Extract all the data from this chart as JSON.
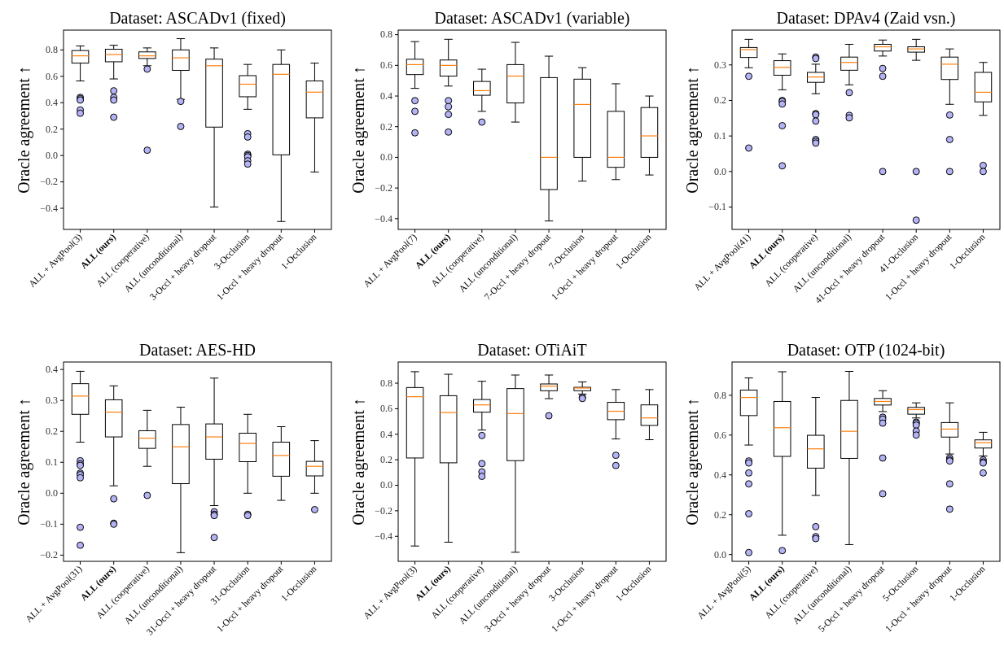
{
  "chart_data": [
    {
      "type": "box",
      "title": "Dataset: ASCADv1 (fixed)",
      "ylabel": "Oracle agreement ↑",
      "categories": [
        "ALL + AvgPool(3)",
        "ALL (ours)",
        "ALL (cooperative)",
        "ALL (unconditional)",
        "3-Occl + heavy dropout",
        "3-Occlusion",
        "1-Occl + heavy dropout",
        "1-Occlusion"
      ],
      "ylim": [
        -0.56,
        0.95
      ],
      "yticks": [
        {
          "value": -0.4,
          "label": "−0.4"
        },
        {
          "value": -0.2,
          "label": "−0.2"
        },
        {
          "value": 0,
          "label": "0.0"
        },
        {
          "value": 0.2,
          "label": "0.2"
        },
        {
          "value": 0.4,
          "label": "0.4"
        },
        {
          "value": 0.6,
          "label": "0.6"
        },
        {
          "value": 0.8,
          "label": "0.8"
        }
      ],
      "boxes": [
        {
          "low": 0.565,
          "q1": 0.7,
          "median": 0.755,
          "q3": 0.795,
          "high": 0.83,
          "outliers": [
            0.44,
            0.43,
            0.42,
            0.345,
            0.32
          ]
        },
        {
          "low": 0.58,
          "q1": 0.71,
          "median": 0.765,
          "q3": 0.805,
          "high": 0.835,
          "outliers": [
            0.49,
            0.44,
            0.42,
            0.29
          ]
        },
        {
          "low": 0.68,
          "q1": 0.735,
          "median": 0.755,
          "q3": 0.785,
          "high": 0.815,
          "outliers": [
            0.655,
            0.04
          ]
        },
        {
          "low": 0.425,
          "q1": 0.645,
          "median": 0.74,
          "q3": 0.8,
          "high": 0.885,
          "outliers": [
            0.41,
            0.22
          ]
        },
        {
          "low": -0.39,
          "q1": 0.215,
          "median": 0.68,
          "q3": 0.73,
          "high": 0.815
        },
        {
          "low": 0.35,
          "q1": 0.445,
          "median": 0.54,
          "q3": 0.605,
          "high": 0.69,
          "outliers": [
            0.165,
            0.14,
            0.01,
            0.0,
            -0.01,
            -0.04,
            -0.065
          ]
        },
        {
          "low": -0.5,
          "q1": 0.005,
          "median": 0.615,
          "q3": 0.69,
          "high": 0.8
        },
        {
          "low": -0.125,
          "q1": 0.285,
          "median": 0.48,
          "q3": 0.565,
          "high": 0.7
        }
      ]
    },
    {
      "type": "box",
      "title": "Dataset: ASCADv1 (variable)",
      "ylabel": "Oracle agreement ↑",
      "categories": [
        "ALL + AvgPool(7)",
        "ALL (ours)",
        "ALL (cooperative)",
        "ALL (unconditional)",
        "7-Occl + heavy dropout",
        "7-Occlusion",
        "1-Occl + heavy dropout",
        "1-Occlusion"
      ],
      "ylim": [
        -0.47,
        0.83
      ],
      "yticks": [
        {
          "value": -0.4,
          "label": "−0.4"
        },
        {
          "value": -0.2,
          "label": "−0.2"
        },
        {
          "value": 0,
          "label": "0.0"
        },
        {
          "value": 0.2,
          "label": "0.2"
        },
        {
          "value": 0.4,
          "label": "0.4"
        },
        {
          "value": 0.6,
          "label": "0.6"
        },
        {
          "value": 0.8,
          "label": "0.8"
        }
      ],
      "boxes": [
        {
          "low": 0.45,
          "q1": 0.54,
          "median": 0.605,
          "q3": 0.64,
          "high": 0.755,
          "outliers": [
            0.37,
            0.3,
            0.16
          ]
        },
        {
          "low": 0.465,
          "q1": 0.53,
          "median": 0.6,
          "q3": 0.635,
          "high": 0.77,
          "outliers": [
            0.37,
            0.33,
            0.28,
            0.165
          ]
        },
        {
          "low": 0.3,
          "q1": 0.405,
          "median": 0.435,
          "q3": 0.495,
          "high": 0.575,
          "outliers": [
            0.23
          ]
        },
        {
          "low": 0.23,
          "q1": 0.355,
          "median": 0.53,
          "q3": 0.605,
          "high": 0.75
        },
        {
          "low": -0.415,
          "q1": -0.21,
          "median": 0.0,
          "q3": 0.52,
          "high": 0.66
        },
        {
          "low": -0.155,
          "q1": 0.0,
          "median": 0.345,
          "q3": 0.51,
          "high": 0.585
        },
        {
          "low": -0.145,
          "q1": -0.065,
          "median": 0.0,
          "q3": 0.3,
          "high": 0.48
        },
        {
          "low": -0.115,
          "q1": 0.0,
          "median": 0.14,
          "q3": 0.325,
          "high": 0.4
        }
      ]
    },
    {
      "type": "box",
      "title": "Dataset: DPAv4 (Zaid vsn.)",
      "ylabel": "Oracle agreement ↑",
      "categories": [
        "ALL + AvgPool(41)",
        "ALL (ours)",
        "ALL (cooperative)",
        "ALL (unconditional)",
        "41-Occl + heavy dropout",
        "41-Occlusion",
        "1-Occl + heavy dropout",
        "1-Occlusion"
      ],
      "ylim": [
        -0.163,
        0.398
      ],
      "yticks": [
        {
          "value": -0.1,
          "label": "−0.1"
        },
        {
          "value": 0,
          "label": "0.0"
        },
        {
          "value": 0.1,
          "label": "0.1"
        },
        {
          "value": 0.2,
          "label": "0.2"
        },
        {
          "value": 0.3,
          "label": "0.3"
        }
      ],
      "boxes": [
        {
          "low": 0.292,
          "q1": 0.321,
          "median": 0.343,
          "q3": 0.349,
          "high": 0.372,
          "outliers": [
            0.268,
            0.066
          ]
        },
        {
          "low": 0.23,
          "q1": 0.271,
          "median": 0.293,
          "q3": 0.312,
          "high": 0.331,
          "outliers": [
            0.2,
            0.197,
            0.19,
            0.129,
            0.016
          ]
        },
        {
          "low": 0.219,
          "q1": 0.251,
          "median": 0.266,
          "q3": 0.279,
          "high": 0.302,
          "outliers": [
            0.322,
            0.318,
            0.163,
            0.16,
            0.142,
            0.09,
            0.085,
            0.08
          ]
        },
        {
          "low": 0.244,
          "q1": 0.285,
          "median": 0.307,
          "q3": 0.322,
          "high": 0.358,
          "outliers": [
            0.222,
            0.158,
            0.151
          ]
        },
        {
          "low": 0.325,
          "q1": 0.339,
          "median": 0.351,
          "q3": 0.358,
          "high": 0.37,
          "outliers": [
            0.29,
            0.268,
            0.0
          ]
        },
        {
          "low": 0.313,
          "q1": 0.336,
          "median": 0.345,
          "q3": 0.351,
          "high": 0.372,
          "outliers": [
            0.0,
            -0.137
          ]
        },
        {
          "low": 0.189,
          "q1": 0.259,
          "median": 0.302,
          "q3": 0.322,
          "high": 0.345,
          "outliers": [
            0.159,
            0.09,
            0.0
          ]
        },
        {
          "low": 0.158,
          "q1": 0.196,
          "median": 0.223,
          "q3": 0.279,
          "high": 0.307,
          "outliers": [
            0.017,
            0.0
          ]
        }
      ]
    },
    {
      "type": "box",
      "title": "Dataset: AES-HD",
      "ylabel": "Oracle agreement ↑",
      "categories": [
        "ALL + AvgPool(31)",
        "ALL (ours)",
        "ALL (cooperative)",
        "ALL (unconditional)",
        "31-Occl + heavy dropout",
        "31-Occlusion",
        "1-Occl + heavy dropout",
        "1-Occlusion"
      ],
      "ylim": [
        -0.22,
        0.424
      ],
      "yticks": [
        {
          "value": -0.2,
          "label": "−0.2"
        },
        {
          "value": -0.1,
          "label": "−0.1"
        },
        {
          "value": 0,
          "label": "0.0"
        },
        {
          "value": 0.1,
          "label": "0.1"
        },
        {
          "value": 0.2,
          "label": "0.2"
        },
        {
          "value": 0.3,
          "label": "0.3"
        },
        {
          "value": 0.4,
          "label": "0.4"
        }
      ],
      "boxes": [
        {
          "low": 0.165,
          "q1": 0.255,
          "median": 0.314,
          "q3": 0.354,
          "high": 0.394,
          "outliers": [
            0.105,
            0.095,
            0.09,
            0.065,
            0.06,
            0.05,
            -0.11,
            -0.168
          ]
        },
        {
          "low": 0.024,
          "q1": 0.182,
          "median": 0.262,
          "q3": 0.302,
          "high": 0.347,
          "outliers": [
            -0.018,
            -0.097,
            -0.1
          ]
        },
        {
          "low": 0.087,
          "q1": 0.145,
          "median": 0.178,
          "q3": 0.202,
          "high": 0.268,
          "outliers": [
            -0.007
          ]
        },
        {
          "low": -0.192,
          "q1": 0.031,
          "median": 0.15,
          "q3": 0.222,
          "high": 0.278
        },
        {
          "low": -0.04,
          "q1": 0.11,
          "median": 0.182,
          "q3": 0.224,
          "high": 0.372,
          "outliers": [
            -0.06,
            -0.068,
            -0.072,
            -0.143
          ]
        },
        {
          "low": 0.0,
          "q1": 0.102,
          "median": 0.161,
          "q3": 0.194,
          "high": 0.255,
          "outliers": [
            -0.068,
            -0.072
          ]
        },
        {
          "low": -0.023,
          "q1": 0.055,
          "median": 0.122,
          "q3": 0.165,
          "high": 0.215
        },
        {
          "low": 0.0,
          "q1": 0.056,
          "median": 0.087,
          "q3": 0.103,
          "high": 0.17,
          "outliers": [
            -0.053
          ]
        }
      ]
    },
    {
      "type": "box",
      "title": "Dataset: OTiAiT",
      "ylabel": "Oracle agreement ↑",
      "categories": [
        "ALL + AvgPool(3)",
        "ALL (ours)",
        "ALL (cooperative)",
        "ALL (unconditional)",
        "3-Occl + heavy dropout",
        "3-Occlusion",
        "1-Occl + heavy dropout",
        "1-Occlusion"
      ],
      "ylim": [
        -0.596,
        0.966
      ],
      "yticks": [
        {
          "value": -0.4,
          "label": "−0.4"
        },
        {
          "value": -0.2,
          "label": "−0.2"
        },
        {
          "value": 0,
          "label": "0.0"
        },
        {
          "value": 0.2,
          "label": "0.2"
        },
        {
          "value": 0.4,
          "label": "0.4"
        },
        {
          "value": 0.6,
          "label": "0.6"
        },
        {
          "value": 0.8,
          "label": "0.8"
        }
      ],
      "boxes": [
        {
          "low": -0.476,
          "q1": 0.214,
          "median": 0.694,
          "q3": 0.766,
          "high": 0.89
        },
        {
          "low": -0.446,
          "q1": 0.176,
          "median": 0.57,
          "q3": 0.702,
          "high": 0.87
        },
        {
          "low": 0.433,
          "q1": 0.573,
          "median": 0.63,
          "q3": 0.672,
          "high": 0.815,
          "outliers": [
            0.39,
            0.17,
            0.105,
            0.07
          ]
        },
        {
          "low": -0.525,
          "q1": 0.193,
          "median": 0.562,
          "q3": 0.758,
          "high": 0.864
        },
        {
          "low": 0.679,
          "q1": 0.741,
          "median": 0.777,
          "q3": 0.794,
          "high": 0.864,
          "outliers": [
            0.545
          ]
        },
        {
          "low": 0.715,
          "q1": 0.741,
          "median": 0.762,
          "q3": 0.768,
          "high": 0.81,
          "outliers": [
            0.69,
            0.68
          ]
        },
        {
          "low": 0.363,
          "q1": 0.514,
          "median": 0.58,
          "q3": 0.65,
          "high": 0.75,
          "outliers": [
            0.235,
            0.155
          ]
        },
        {
          "low": 0.357,
          "q1": 0.469,
          "median": 0.528,
          "q3": 0.63,
          "high": 0.75
        }
      ]
    },
    {
      "type": "box",
      "title": "Dataset: OTP (1024-bit)",
      "ylabel": "Oracle agreement ↑",
      "categories": [
        "ALL + AvgPool(5)",
        "ALL (ours)",
        "ALL (cooperative)",
        "ALL (unconditional)",
        "5-Occl + heavy dropout",
        "5-Occlusion",
        "1-Occl + heavy dropout",
        "1-Occlusion"
      ],
      "ylim": [
        -0.034,
        0.967
      ],
      "yticks": [
        {
          "value": 0,
          "label": "0.0"
        },
        {
          "value": 0.2,
          "label": "0.2"
        },
        {
          "value": 0.4,
          "label": "0.4"
        },
        {
          "value": 0.6,
          "label": "0.6"
        },
        {
          "value": 0.8,
          "label": "0.8"
        }
      ],
      "boxes": [
        {
          "low": 0.55,
          "q1": 0.698,
          "median": 0.789,
          "q3": 0.826,
          "high": 0.887,
          "outliers": [
            0.47,
            0.46,
            0.41,
            0.355,
            0.205,
            0.01
          ]
        },
        {
          "low": 0.097,
          "q1": 0.493,
          "median": 0.637,
          "q3": 0.769,
          "high": 0.918,
          "outliers": [
            0.02
          ]
        },
        {
          "low": 0.297,
          "q1": 0.434,
          "median": 0.531,
          "q3": 0.599,
          "high": 0.789,
          "outliers": [
            0.14,
            0.09,
            0.08
          ]
        },
        {
          "low": 0.05,
          "q1": 0.483,
          "median": 0.619,
          "q3": 0.774,
          "high": 0.92
        },
        {
          "low": 0.718,
          "q1": 0.751,
          "median": 0.769,
          "q3": 0.784,
          "high": 0.823,
          "outliers": [
            0.69,
            0.68,
            0.66,
            0.485,
            0.305
          ]
        },
        {
          "low": 0.686,
          "q1": 0.705,
          "median": 0.728,
          "q3": 0.739,
          "high": 0.762,
          "outliers": [
            0.665,
            0.66,
            0.65,
            0.62,
            0.6
          ]
        },
        {
          "low": 0.505,
          "q1": 0.59,
          "median": 0.63,
          "q3": 0.663,
          "high": 0.762,
          "outliers": [
            0.485,
            0.475,
            0.47,
            0.355,
            0.228
          ]
        },
        {
          "low": 0.495,
          "q1": 0.535,
          "median": 0.562,
          "q3": 0.576,
          "high": 0.614,
          "outliers": [
            0.475,
            0.465,
            0.46,
            0.41
          ]
        }
      ]
    }
  ]
}
